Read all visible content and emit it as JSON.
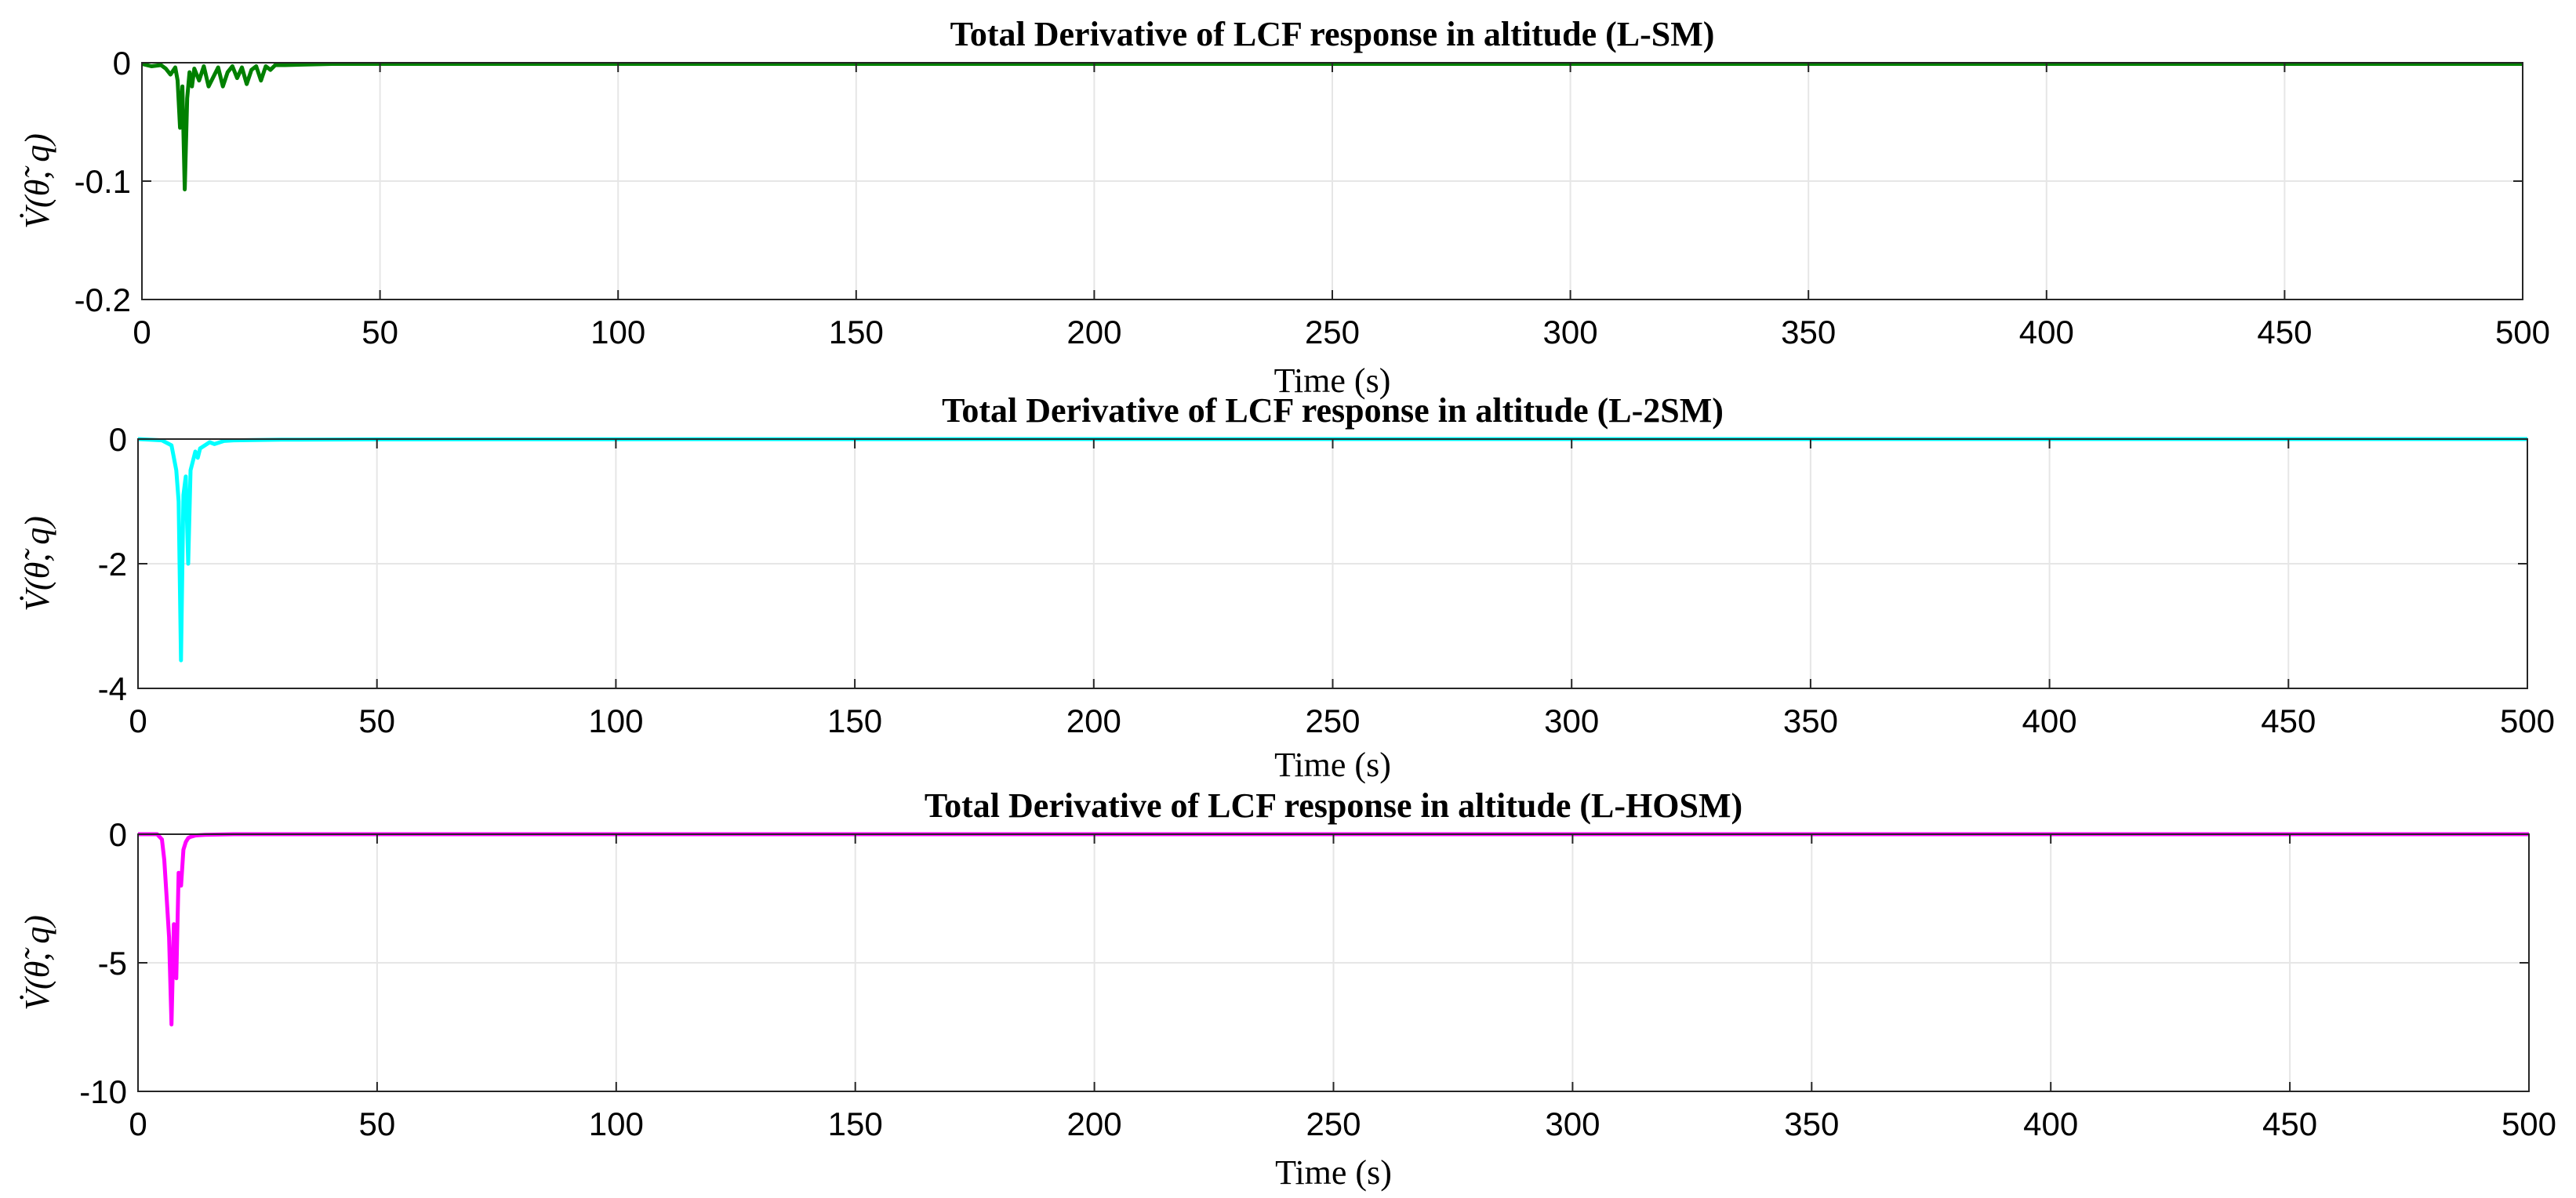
{
  "chart_data": [
    {
      "type": "line",
      "title": "Total Derivative of LCF response in altitude (L-SM)",
      "xlabel": "Time (s)",
      "ylabel": "V̇(θ̃, q)",
      "xlim": [
        0,
        500
      ],
      "ylim": [
        -0.2,
        0
      ],
      "xticks": [
        0,
        50,
        100,
        150,
        200,
        250,
        300,
        350,
        400,
        450,
        500
      ],
      "xtick_labels": [
        "0",
        "50",
        "100",
        "150",
        "200",
        "250",
        "300",
        "350",
        "400",
        "450",
        "500"
      ],
      "yticks": [
        0,
        -0.1,
        -0.2
      ],
      "ytick_labels": [
        "0",
        "-0.1",
        "-0.2"
      ],
      "grid": true,
      "series": [
        {
          "name": "L-SM",
          "color": "#008000",
          "x": [
            0,
            2,
            4,
            5,
            6,
            7,
            7.5,
            8,
            8.5,
            9,
            9.5,
            10,
            10.5,
            11,
            12,
            13,
            14,
            15,
            16,
            17,
            18,
            19,
            20,
            21,
            22,
            23,
            24,
            25,
            26,
            27,
            28,
            30,
            40,
            60,
            100,
            200,
            300,
            400,
            500
          ],
          "y": [
            -0.001,
            -0.003,
            -0.002,
            -0.005,
            -0.01,
            -0.004,
            -0.015,
            -0.055,
            -0.02,
            -0.107,
            -0.03,
            -0.008,
            -0.02,
            -0.005,
            -0.015,
            -0.003,
            -0.02,
            -0.012,
            -0.004,
            -0.02,
            -0.008,
            -0.003,
            -0.013,
            -0.004,
            -0.018,
            -0.006,
            -0.003,
            -0.015,
            -0.003,
            -0.006,
            -0.002,
            -0.002,
            -0.001,
            -0.001,
            -0.001,
            -0.001,
            -0.001,
            -0.001,
            -0.001
          ]
        }
      ]
    },
    {
      "type": "line",
      "title": "Total Derivative of LCF response in altitude (L-2SM)",
      "xlabel": "Time (s)",
      "ylabel": "V̇(θ̃, q)",
      "xlim": [
        0,
        500
      ],
      "ylim": [
        -4,
        0
      ],
      "xticks": [
        0,
        50,
        100,
        150,
        200,
        250,
        300,
        350,
        400,
        450,
        500
      ],
      "xtick_labels": [
        "0",
        "50",
        "100",
        "150",
        "200",
        "250",
        "300",
        "350",
        "400",
        "450",
        "500"
      ],
      "yticks": [
        0,
        -2,
        -4
      ],
      "ytick_labels": [
        "0",
        "-2",
        "-4"
      ],
      "grid": true,
      "series": [
        {
          "name": "L-2SM",
          "color": "#00ffff",
          "x": [
            0,
            5,
            7,
            8,
            8.5,
            9,
            9.5,
            10,
            10.5,
            11,
            11.5,
            12,
            12.5,
            13,
            14,
            15,
            16,
            18,
            20,
            30,
            50,
            100,
            200,
            300,
            400,
            500
          ],
          "y": [
            0,
            -0.02,
            -0.1,
            -0.5,
            -1.0,
            -3.55,
            -0.9,
            -0.6,
            -2.0,
            -0.5,
            -0.35,
            -0.2,
            -0.3,
            -0.15,
            -0.1,
            -0.05,
            -0.08,
            -0.03,
            -0.02,
            -0.01,
            -0.005,
            -0.002,
            0,
            0,
            0,
            0
          ]
        }
      ]
    },
    {
      "type": "line",
      "title": "Total Derivative of LCF response in altitude (L-HOSM)",
      "xlabel": "Time (s)",
      "ylabel": "V̇(θ̃, q)",
      "xlim": [
        0,
        500
      ],
      "ylim": [
        -10,
        0
      ],
      "xticks": [
        0,
        50,
        100,
        150,
        200,
        250,
        300,
        350,
        400,
        450,
        500
      ],
      "xtick_labels": [
        "0",
        "50",
        "100",
        "150",
        "200",
        "250",
        "300",
        "350",
        "400",
        "450",
        "500"
      ],
      "yticks": [
        0,
        -5,
        -10
      ],
      "ytick_labels": [
        "0",
        "-5",
        "-10"
      ],
      "grid": true,
      "series": [
        {
          "name": "L-HOSM",
          "color": "#ff00ff",
          "x": [
            0,
            4,
            5,
            5.5,
            6,
            6.5,
            7,
            7.5,
            8,
            8.5,
            9,
            9.5,
            10,
            10.5,
            11,
            12,
            14,
            20,
            50,
            100,
            200,
            300,
            400,
            500
          ],
          "y": [
            0,
            0,
            -0.2,
            -1.0,
            -2.5,
            -4.0,
            -7.4,
            -3.5,
            -5.6,
            -1.5,
            -2.0,
            -0.6,
            -0.3,
            -0.15,
            -0.1,
            -0.05,
            -0.02,
            0,
            0,
            0,
            0,
            0,
            0,
            0
          ]
        }
      ]
    }
  ]
}
